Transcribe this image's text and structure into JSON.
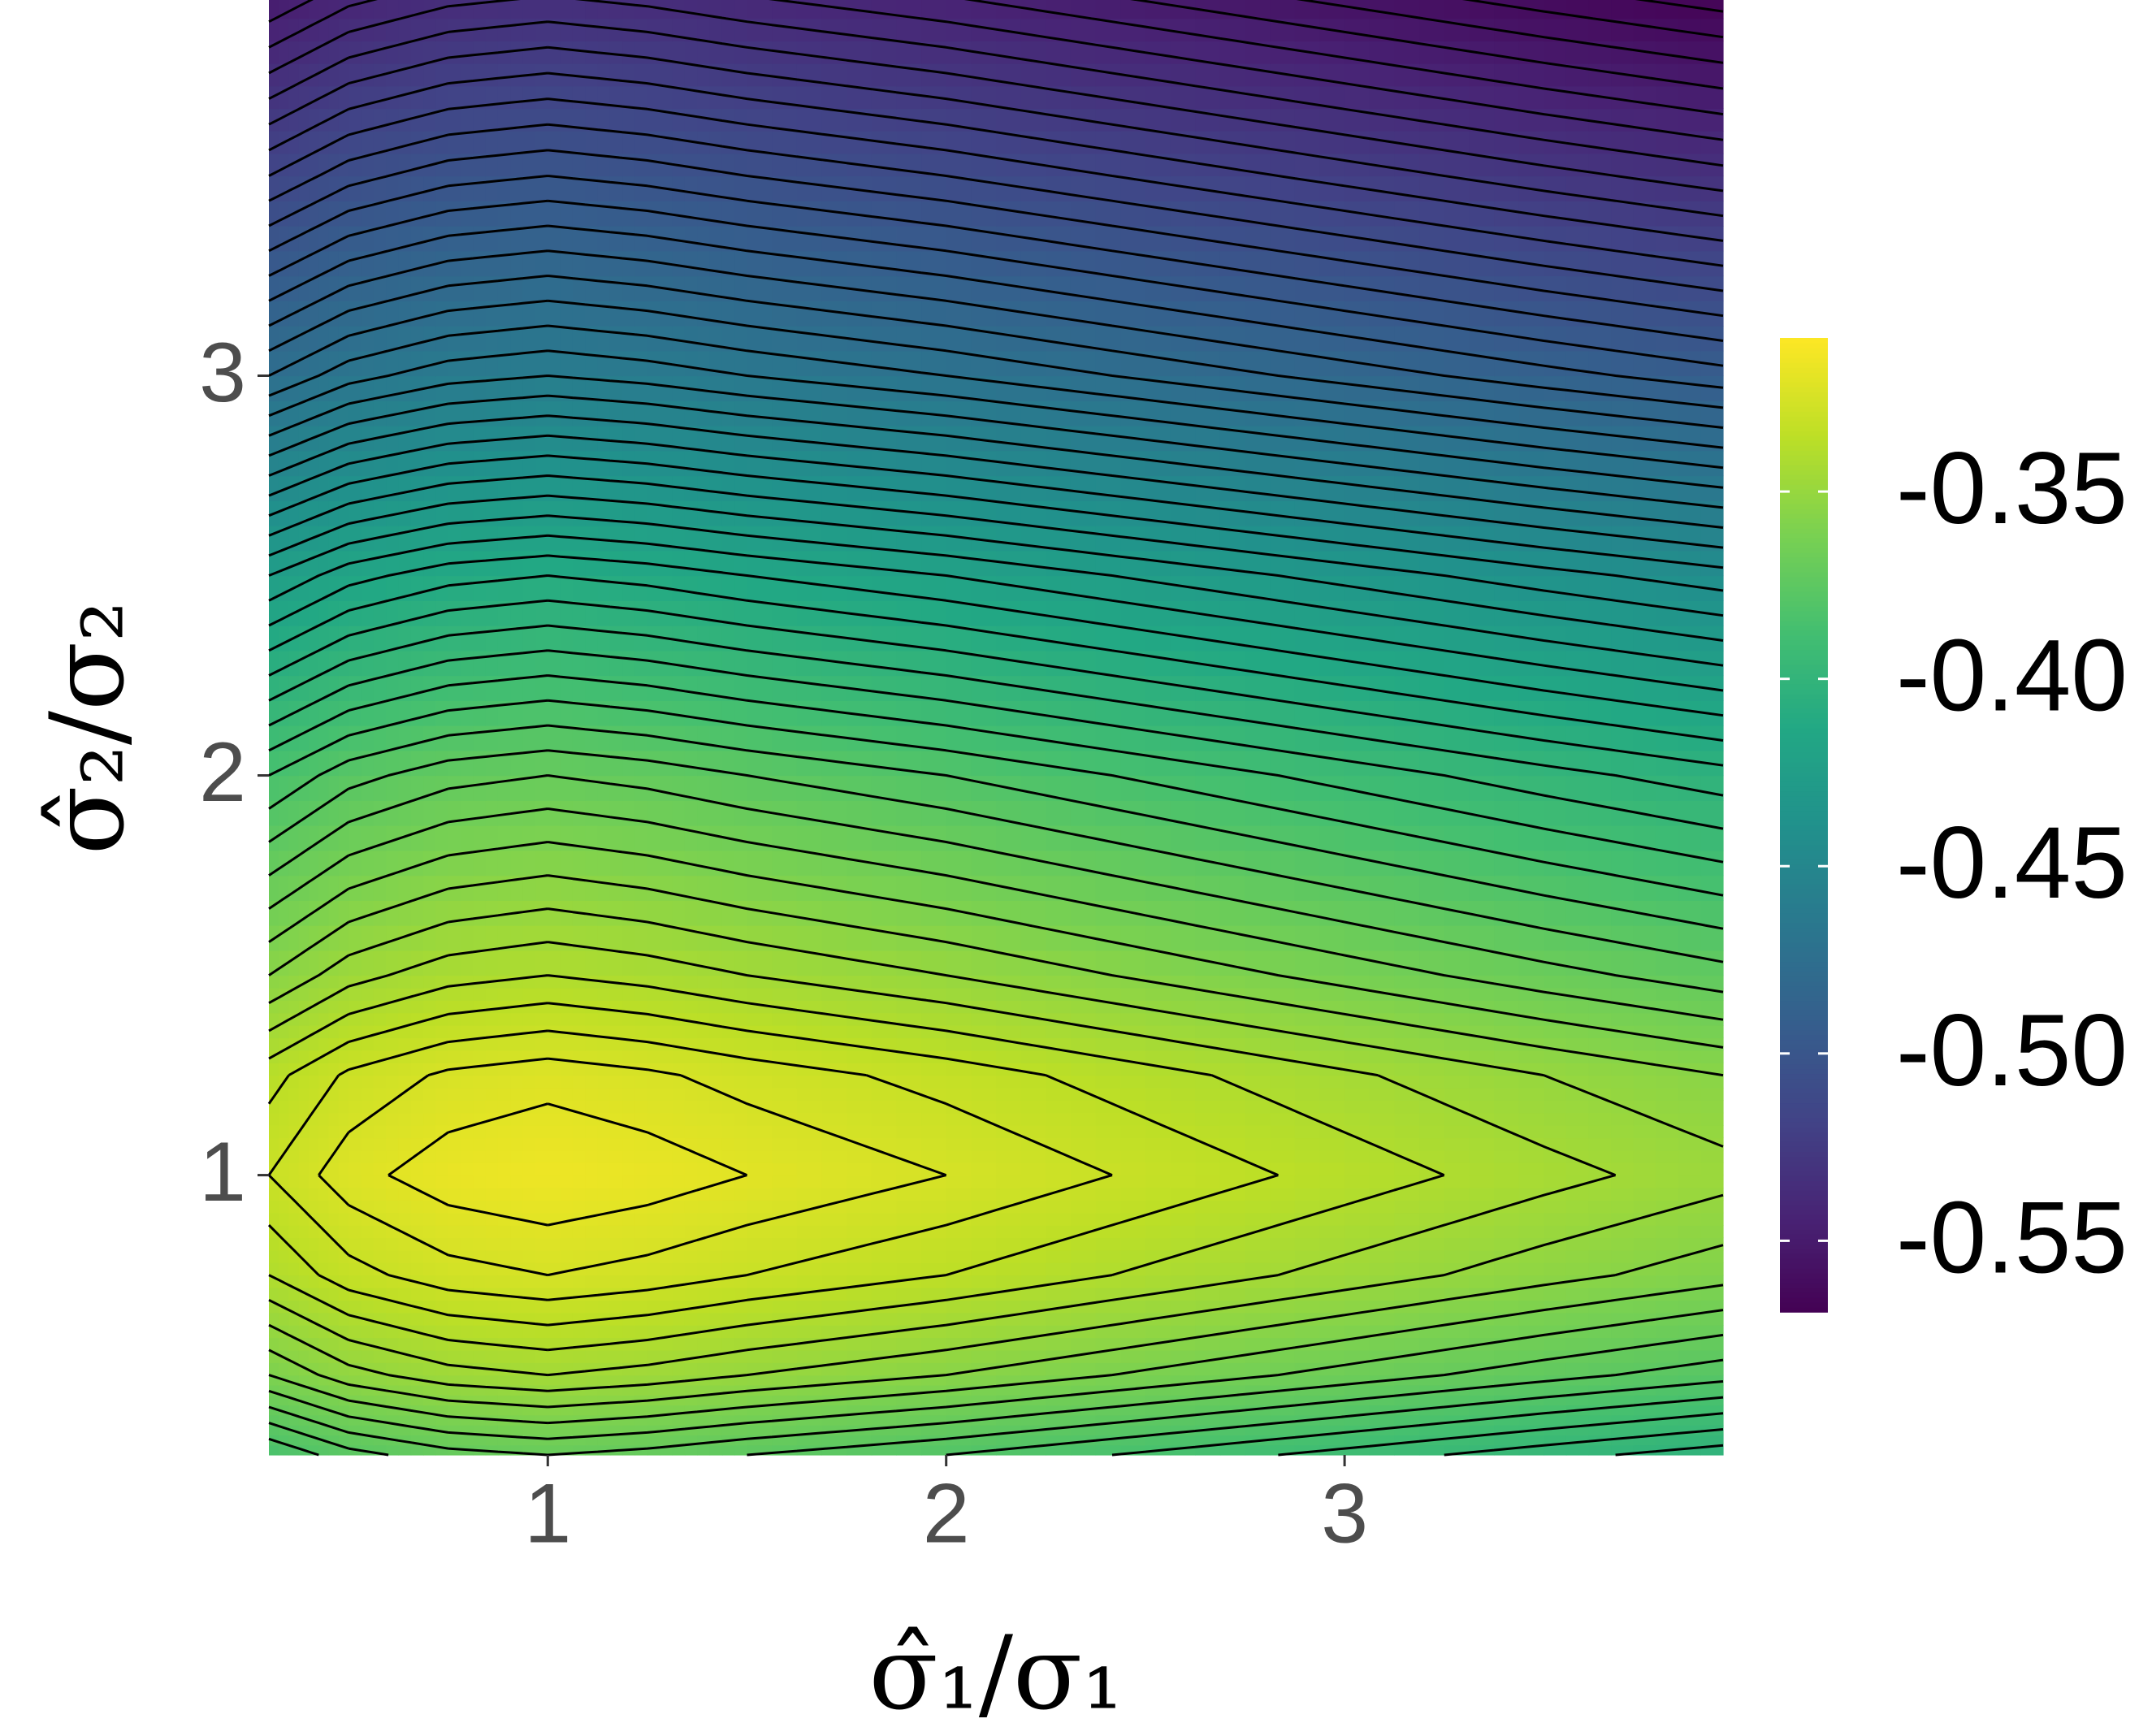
{
  "chart_data": {
    "type": "contour",
    "xlabel": "σ̂₁/σ₁",
    "ylabel": "σ̂₂/σ₂",
    "x": [
      0.3,
      0.5,
      0.75,
      1,
      1.25,
      1.5,
      2,
      2.5,
      3,
      3.5,
      3.95
    ],
    "y": [
      0.3,
      0.5,
      0.75,
      1,
      1.25,
      1.5,
      2,
      2.5,
      3,
      3.5,
      3.95
    ],
    "z": [
      [
        -0.385,
        -0.377,
        -0.372,
        -0.37,
        -0.372,
        -0.375,
        -0.38,
        -0.386,
        -0.392,
        -0.398,
        -0.403
      ],
      [
        -0.36,
        -0.352,
        -0.347,
        -0.345,
        -0.347,
        -0.35,
        -0.355,
        -0.361,
        -0.367,
        -0.373,
        -0.378
      ],
      [
        -0.34,
        -0.332,
        -0.327,
        -0.325,
        -0.327,
        -0.33,
        -0.335,
        -0.341,
        -0.347,
        -0.353,
        -0.358
      ],
      [
        -0.33,
        -0.322,
        -0.317,
        -0.315,
        -0.317,
        -0.32,
        -0.325,
        -0.331,
        -0.337,
        -0.343,
        -0.348
      ],
      [
        -0.337,
        -0.329,
        -0.324,
        -0.322,
        -0.324,
        -0.327,
        -0.332,
        -0.338,
        -0.344,
        -0.35,
        -0.355
      ],
      [
        -0.355,
        -0.347,
        -0.342,
        -0.34,
        -0.342,
        -0.345,
        -0.35,
        -0.356,
        -0.362,
        -0.368,
        -0.373
      ],
      [
        -0.385,
        -0.377,
        -0.372,
        -0.37,
        -0.372,
        -0.375,
        -0.38,
        -0.386,
        -0.392,
        -0.398,
        -0.403
      ],
      [
        -0.425,
        -0.417,
        -0.412,
        -0.41,
        -0.412,
        -0.415,
        -0.42,
        -0.426,
        -0.432,
        -0.438,
        -0.443
      ],
      [
        -0.475,
        -0.467,
        -0.462,
        -0.46,
        -0.462,
        -0.465,
        -0.47,
        -0.476,
        -0.482,
        -0.488,
        -0.493
      ],
      [
        -0.515,
        -0.507,
        -0.502,
        -0.5,
        -0.502,
        -0.505,
        -0.51,
        -0.516,
        -0.522,
        -0.528,
        -0.533
      ],
      [
        -0.55,
        -0.542,
        -0.537,
        -0.535,
        -0.537,
        -0.54,
        -0.545,
        -0.551,
        -0.557,
        -0.563,
        -0.568
      ]
    ],
    "levels": [
      -0.565,
      -0.56,
      -0.555,
      -0.55,
      -0.545,
      -0.54,
      -0.535,
      -0.53,
      -0.525,
      -0.52,
      -0.515,
      -0.51,
      -0.505,
      -0.5,
      -0.495,
      -0.49,
      -0.485,
      -0.48,
      -0.475,
      -0.47,
      -0.465,
      -0.46,
      -0.455,
      -0.45,
      -0.445,
      -0.44,
      -0.435,
      -0.43,
      -0.425,
      -0.42,
      -0.415,
      -0.41,
      -0.405,
      -0.4,
      -0.395,
      -0.39,
      -0.385,
      -0.38,
      -0.375,
      -0.37,
      -0.365,
      -0.36,
      -0.355,
      -0.35,
      -0.345,
      -0.34,
      -0.335,
      -0.33,
      -0.325,
      -0.32
    ],
    "colormap": "viridis",
    "xlim": [
      0.3,
      3.95
    ],
    "ylim": [
      0.3,
      3.94
    ],
    "xticks": [
      1,
      2,
      3
    ],
    "yticks": [
      1,
      2,
      3
    ],
    "clim": [
      -0.569,
      -0.309
    ],
    "cticks": [
      -0.55,
      {
        "value": -0.5,
        "label": "-0.50"
      },
      -0.45,
      {
        "value": -0.4,
        "label": "-0.40"
      },
      -0.35
    ]
  }
}
